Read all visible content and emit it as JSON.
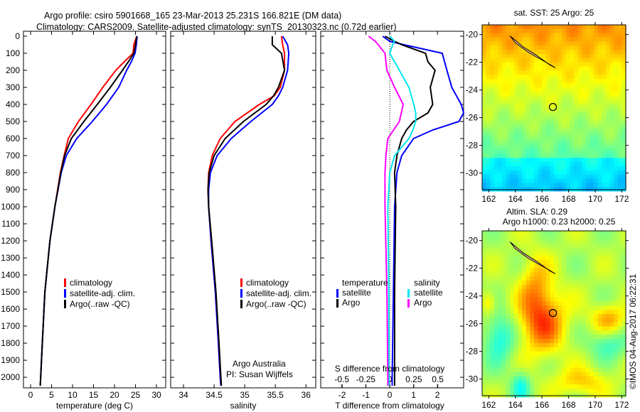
{
  "title_line1": "Argo profile: csiro 5901668_165 23-Mar-2013 25.231S 166.821E (DM data)",
  "title_line2": "Climatology: CARS2009. Satellite-adjusted climatology: synTS_20130323.nc (0.72d earlier)",
  "colors": {
    "climatology": "#ff0000",
    "satellite": "#0000ff",
    "argo": "#000000",
    "sal_sat": "#00e5ee",
    "sal_argo": "#ff00ff"
  },
  "chart_data": [
    {
      "type": "line",
      "name": "temperature",
      "xlabel": "temperature (deg C)",
      "ylabel": "",
      "xlim": [
        -1.7,
        32.2
      ],
      "ylim": [
        2062,
        -29
      ],
      "xticks": [
        "0",
        "5",
        "10",
        "15",
        "20",
        "25",
        "30"
      ],
      "yticks": [
        "0",
        "100",
        "200",
        "300",
        "400",
        "500",
        "600",
        "700",
        "800",
        "900",
        "1000",
        "1100",
        "1200",
        "1300",
        "1400",
        "1500",
        "1600",
        "1700",
        "1800",
        "1900",
        "2000"
      ],
      "legend": [
        "climatology",
        "satellite-adj. clim.",
        "Argo(..raw -QC)"
      ],
      "depth": [
        0,
        50,
        100,
        150,
        200,
        300,
        400,
        500,
        600,
        700,
        800,
        1000,
        1200,
        1500,
        1800,
        2000,
        2050
      ],
      "series": [
        {
          "name": "climatology",
          "values": [
            25.3,
            24.6,
            24.4,
            22.3,
            20.3,
            17.2,
            14.4,
            11.4,
            9.0,
            8.0,
            7.1,
            5.8,
            4.6,
            3.4,
            2.8,
            2.4,
            2.3
          ]
        },
        {
          "name": "satellite-adj. clim.",
          "values": [
            25.4,
            25.2,
            24.9,
            24.0,
            22.9,
            21.0,
            18.1,
            14.7,
            11.0,
            8.5,
            7.3,
            5.8,
            4.6,
            3.4,
            2.8,
            2.4,
            2.3
          ]
        },
        {
          "name": "Argo",
          "values": [
            25.3,
            25.0,
            24.6,
            23.3,
            21.9,
            19.0,
            15.9,
            12.7,
            9.7,
            8.1,
            7.2,
            5.8,
            4.6,
            3.4,
            2.8,
            2.4,
            2.3
          ]
        }
      ]
    },
    {
      "type": "line",
      "name": "salinity",
      "xlabel": "salinity",
      "xlim": [
        33.79,
        36.16
      ],
      "ylim": [
        2062,
        -29
      ],
      "xticks": [
        "34",
        "34.5",
        "35",
        "35.5",
        "36"
      ],
      "legend": [
        "climatology",
        "satellite-adj. clim.",
        "Argo(..raw -QC)"
      ],
      "annotation1": "Argo Australia",
      "annotation2": "PI: Susan Wijffels",
      "depth": [
        0,
        50,
        100,
        200,
        300,
        350,
        400,
        500,
        600,
        700,
        800,
        900,
        1000,
        1200,
        1500,
        1800,
        2000,
        2050
      ],
      "series": [
        {
          "name": "climatology",
          "values": [
            35.6,
            35.62,
            35.65,
            35.65,
            35.58,
            35.48,
            35.24,
            34.84,
            34.6,
            34.47,
            34.41,
            34.4,
            34.41,
            34.45,
            34.52,
            34.57,
            34.6,
            34.61
          ]
        },
        {
          "name": "satellite-adj. clim.",
          "values": [
            35.62,
            35.7,
            35.72,
            35.7,
            35.62,
            35.55,
            35.45,
            35.1,
            34.78,
            34.55,
            34.44,
            34.41,
            34.41,
            34.45,
            34.52,
            34.57,
            34.6,
            34.61
          ]
        },
        {
          "name": "Argo",
          "values": [
            35.45,
            35.45,
            35.6,
            35.65,
            35.55,
            35.47,
            35.35,
            34.98,
            34.68,
            34.5,
            34.42,
            34.4,
            34.41,
            34.46,
            34.53,
            34.58,
            34.61,
            34.62
          ]
        }
      ]
    },
    {
      "type": "line",
      "name": "difference",
      "xlabel": "T difference from climatology",
      "x2label": "S difference from climatology",
      "xlim": [
        -2.9,
        3.1
      ],
      "x2lim": [
        -0.72,
        0.77
      ],
      "ylim": [
        2062,
        -29
      ],
      "xticks": [
        "-2",
        "-1",
        "0",
        "1",
        "2"
      ],
      "x2ticks": [
        "-0.5",
        "-0.25",
        "0",
        "0.25",
        "0.5"
      ],
      "legend_t_title": "temperature",
      "legend_s_title": "salinity",
      "legend_t": [
        "satellite",
        "Argo"
      ],
      "legend_s": [
        "satellite",
        "Argo"
      ],
      "depth": [
        0,
        30,
        50,
        100,
        150,
        200,
        300,
        400,
        450,
        500,
        550,
        600,
        700,
        800,
        1000,
        1500,
        2000,
        2050
      ],
      "series": [
        {
          "name": "T satellite",
          "values": [
            -0.3,
            0.0,
            0.6,
            2.2,
            2.3,
            2.4,
            2.6,
            3.0,
            3.1,
            2.9,
            1.8,
            1.0,
            0.5,
            0.3,
            0.2,
            0.15,
            0.1,
            0.1
          ]
        },
        {
          "name": "T Argo",
          "values": [
            -0.2,
            0.2,
            0.5,
            1.5,
            1.6,
            1.9,
            1.7,
            1.8,
            1.6,
            1.0,
            0.7,
            0.5,
            0.3,
            0.2,
            0.25,
            0.2,
            0.2,
            0.2
          ]
        },
        {
          "name": "S satellite",
          "values": [
            0.0,
            0.05,
            0.03,
            0.0,
            0.05,
            0.1,
            0.2,
            0.25,
            0.27,
            0.27,
            0.24,
            0.2,
            0.05,
            0.0,
            -0.02,
            -0.01,
            -0.01,
            -0.01
          ]
        },
        {
          "name": "S Argo",
          "values": [
            -0.22,
            -0.15,
            -0.12,
            -0.05,
            -0.04,
            -0.03,
            0.05,
            0.14,
            0.12,
            0.1,
            0.04,
            -0.02,
            -0.04,
            -0.05,
            -0.05,
            -0.03,
            -0.02,
            -0.02
          ]
        }
      ]
    },
    {
      "type": "heatmap",
      "name": "sst_map",
      "title": "sat. SST: 25 Argo: 25",
      "xlim": [
        161.5,
        172.3
      ],
      "ylim": [
        -31.2,
        -19.3
      ],
      "xticks": [
        "162",
        "164",
        "166",
        "168",
        "170",
        "172"
      ],
      "yticks": [
        "-20",
        "-22",
        "-24",
        "-26",
        "-28",
        "-30"
      ],
      "profile_location": [
        166.821,
        -25.231
      ]
    },
    {
      "type": "heatmap",
      "name": "sla_map",
      "title": "Altim. SLA: 0.29",
      "subtitle": "Argo h1000: 0.23 h2000: 0.25",
      "xlim": [
        161.5,
        172.3
      ],
      "ylim": [
        -31.2,
        -19.3
      ],
      "xticks": [
        "162",
        "164",
        "166",
        "168",
        "170",
        "172"
      ],
      "yticks": [
        "-20",
        "-22",
        "-24",
        "-26",
        "-28",
        "-30"
      ],
      "profile_location": [
        166.821,
        -25.231
      ]
    }
  ],
  "credit": "©IMOS 04-Aug-2017 06:22:31"
}
